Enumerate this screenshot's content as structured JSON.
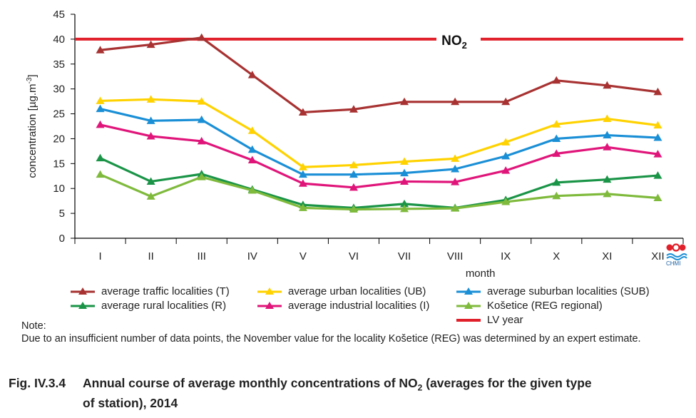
{
  "chart_data": {
    "type": "line",
    "categories": [
      "I",
      "II",
      "III",
      "IV",
      "V",
      "VI",
      "VII",
      "VIII",
      "IX",
      "X",
      "XI",
      "XII"
    ],
    "xlabel": "month",
    "ylabel": "concentration [µg.m",
    "ylabel_sup": "-3",
    "ylabel_end": "]",
    "ylim": [
      0,
      45
    ],
    "yticks": [
      0,
      5,
      10,
      15,
      20,
      25,
      30,
      35,
      40,
      45
    ],
    "grid": false,
    "limit_line": {
      "name": "LV year",
      "value": 40,
      "color": "#e0202a",
      "label": "NO",
      "label_sub": "2"
    },
    "series": [
      {
        "name": "average traffic localities (T)",
        "color": "#a83232",
        "values": [
          37.8,
          38.9,
          40.3,
          32.8,
          25.3,
          25.9,
          27.4,
          27.4,
          27.4,
          31.7,
          30.7,
          29.4
        ]
      },
      {
        "name": "average urban localities (UB)",
        "color": "#ffd200",
        "values": [
          27.6,
          27.9,
          27.5,
          21.6,
          14.3,
          14.7,
          15.4,
          16.0,
          19.3,
          22.9,
          24.0,
          22.7
        ]
      },
      {
        "name": "average suburban localities (SUB)",
        "color": "#1a8fd6",
        "values": [
          26.0,
          23.6,
          23.8,
          17.8,
          12.8,
          12.8,
          13.1,
          13.9,
          16.5,
          20.0,
          20.7,
          20.2
        ]
      },
      {
        "name": "average industrial localities (I)",
        "color": "#e0157a",
        "values": [
          22.8,
          20.5,
          19.5,
          15.7,
          11.0,
          10.2,
          11.4,
          11.3,
          13.6,
          17.0,
          18.3,
          16.9
        ]
      },
      {
        "name": "average rural localities (R)",
        "color": "#1a9447",
        "values": [
          16.1,
          11.4,
          12.9,
          9.8,
          6.7,
          6.1,
          6.9,
          6.1,
          7.7,
          11.2,
          11.8,
          12.6
        ]
      },
      {
        "name": "Košetice (REG regional)",
        "color": "#7fba3c",
        "values": [
          12.8,
          8.4,
          12.3,
          9.6,
          6.1,
          5.8,
          5.9,
          6.0,
          7.3,
          8.5,
          8.9,
          8.1
        ]
      }
    ]
  },
  "legend": {
    "items": [
      {
        "label": "average traffic localities (T)",
        "color": "#a83232",
        "marker": true
      },
      {
        "label": "average urban localities (UB)",
        "color": "#ffd200",
        "marker": true
      },
      {
        "label": "average suburban localities (SUB)",
        "color": "#1a8fd6",
        "marker": true
      },
      {
        "label": "average rural localities (R)",
        "color": "#1a9447",
        "marker": true
      },
      {
        "label": "average industrial localities (I)",
        "color": "#e0157a",
        "marker": true
      },
      {
        "label": "Košetice (REG regional)",
        "color": "#7fba3c",
        "marker": true
      },
      {
        "label": "LV year",
        "color": "#e0202a",
        "marker": false
      }
    ]
  },
  "note": {
    "heading": "Note:",
    "text": "Due to an insufficient number of data points, the November value for the locality Košetice (REG) was determined by an expert estimate."
  },
  "caption": {
    "number": "Fig. IV.3.4",
    "text_a": "Annual course of average monthly concentrations of NO",
    "text_sub": "2",
    "text_b": " (averages for the given type",
    "text_line2": "of station), 2014"
  },
  "logo": {
    "text": "CHMI",
    "icon": "chmi-logo-icon"
  }
}
